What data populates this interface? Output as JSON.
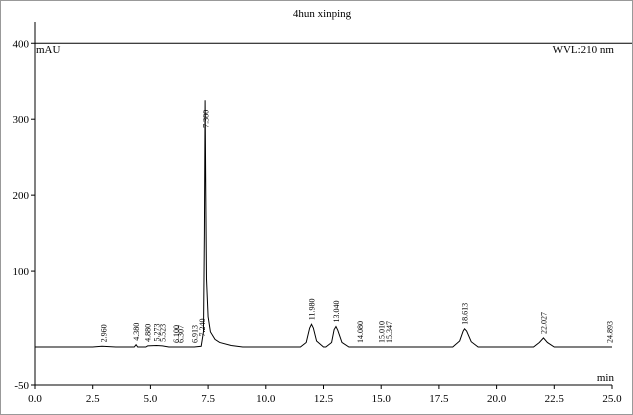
{
  "chart_data": {
    "type": "line",
    "title": "4hun xinping",
    "y_label": "mAU",
    "x_label": "min",
    "annotation": "WVL:210 nm",
    "color": "#000000",
    "xlim": [
      0,
      25
    ],
    "ylim": [
      -50,
      428
    ],
    "xticks": [
      {
        "value": 0,
        "label": "0.0"
      },
      {
        "value": 2.5,
        "label": "2.5"
      },
      {
        "value": 5,
        "label": "5.0"
      },
      {
        "value": 7.5,
        "label": "7.5"
      },
      {
        "value": 10,
        "label": "10.0"
      },
      {
        "value": 12.5,
        "label": "12.5"
      },
      {
        "value": 15,
        "label": "15.0"
      },
      {
        "value": 17.5,
        "label": "17.5"
      },
      {
        "value": 20,
        "label": "20.0"
      },
      {
        "value": 22.5,
        "label": "22.5"
      },
      {
        "value": 25,
        "label": "25.0"
      }
    ],
    "yticks": [
      -50,
      100,
      200,
      300,
      400
    ],
    "x": [
      0,
      2.5,
      2.9,
      3.5,
      4.3,
      4.38,
      4.45,
      4.8,
      4.88,
      5.27,
      5.52,
      5.8,
      6.9,
      7.2,
      7.3,
      7.34,
      7.37,
      7.4,
      7.43,
      7.5,
      7.6,
      7.8,
      8.0,
      8.5,
      9.0,
      11.5,
      11.75,
      11.9,
      11.98,
      12.06,
      12.2,
      12.5,
      12.6,
      12.85,
      12.96,
      13.04,
      13.12,
      13.3,
      13.6,
      18.1,
      18.4,
      18.55,
      18.61,
      18.7,
      18.9,
      19.2,
      21.6,
      21.85,
      22.03,
      22.2,
      22.5,
      25
    ],
    "values": [
      0,
      0,
      1,
      0,
      0,
      3,
      0,
      0,
      1.5,
      2,
      1.5,
      0,
      0,
      1,
      20,
      150,
      325,
      200,
      90,
      40,
      20,
      10,
      6,
      2,
      0,
      0,
      6,
      25,
      30,
      25,
      8,
      0,
      0,
      6,
      23,
      27,
      22,
      6,
      0,
      0,
      8,
      21,
      24,
      21,
      7,
      0,
      0,
      6,
      12,
      6,
      0,
      0
    ],
    "peaks": [
      {
        "value": 2.96,
        "label": "2.960"
      },
      {
        "value": 4.38,
        "label": "4.380"
      },
      {
        "value": 4.88,
        "label": "4.880"
      },
      {
        "value": 5.273,
        "label": "5.273"
      },
      {
        "value": 5.523,
        "label": "5.523"
      },
      {
        "value": 6.1,
        "label": "6.100"
      },
      {
        "value": 6.307,
        "label": "6.307"
      },
      {
        "value": 6.913,
        "label": "6.913"
      },
      {
        "value": 7.24,
        "label": "7.240"
      },
      {
        "value": 7.38,
        "label": "7.380"
      },
      {
        "value": 11.98,
        "label": "11.980"
      },
      {
        "value": 13.04,
        "label": "13.040"
      },
      {
        "value": 14.08,
        "label": "14.080"
      },
      {
        "value": 15.01,
        "label": "15.010"
      },
      {
        "value": 15.347,
        "label": "15.347"
      },
      {
        "value": 18.613,
        "label": "18.613"
      },
      {
        "value": 22.027,
        "label": "22.027"
      },
      {
        "value": 24.893,
        "label": "24.893"
      }
    ]
  }
}
